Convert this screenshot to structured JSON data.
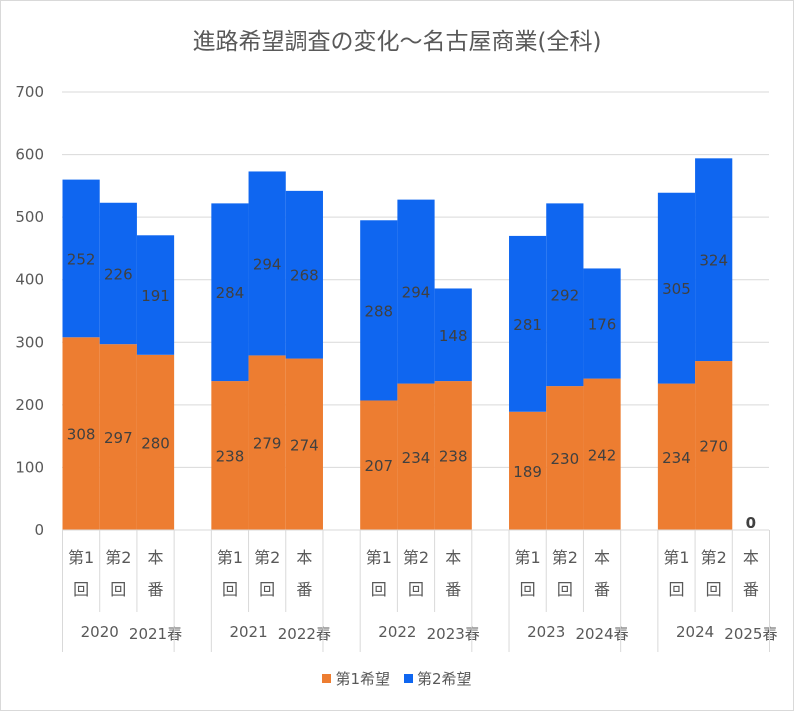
{
  "chart_data": {
    "type": "bar",
    "stacked": true,
    "title": "進路希望調査の変化～名古屋商業(全科)",
    "ylim": [
      0,
      700
    ],
    "yticks": [
      0,
      100,
      200,
      300,
      400,
      500,
      600,
      700
    ],
    "grid": true,
    "legend_position": "bottom",
    "groups": [
      {
        "year": "2020",
        "exam": "2021春",
        "bars": [
          {
            "label": [
              "第1",
              "回"
            ],
            "first": 308,
            "second": 252
          },
          {
            "label": [
              "第2",
              "回"
            ],
            "first": 297,
            "second": 226
          },
          {
            "label": [
              "本",
              "番"
            ],
            "first": 280,
            "second": 191
          }
        ]
      },
      {
        "year": "2021",
        "exam": "2022春",
        "bars": [
          {
            "label": [
              "第1",
              "回"
            ],
            "first": 238,
            "second": 284
          },
          {
            "label": [
              "第2",
              "回"
            ],
            "first": 279,
            "second": 294
          },
          {
            "label": [
              "本",
              "番"
            ],
            "first": 274,
            "second": 268
          }
        ]
      },
      {
        "year": "2022",
        "exam": "2023春",
        "bars": [
          {
            "label": [
              "第1",
              "回"
            ],
            "first": 207,
            "second": 288
          },
          {
            "label": [
              "第2",
              "回"
            ],
            "first": 234,
            "second": 294
          },
          {
            "label": [
              "本",
              "番"
            ],
            "first": 238,
            "second": 148
          }
        ]
      },
      {
        "year": "2023",
        "exam": "2024春",
        "bars": [
          {
            "label": [
              "第1",
              "回"
            ],
            "first": 189,
            "second": 281
          },
          {
            "label": [
              "第2",
              "回"
            ],
            "first": 230,
            "second": 292
          },
          {
            "label": [
              "本",
              "番"
            ],
            "first": 242,
            "second": 176
          }
        ]
      },
      {
        "year": "2024",
        "exam": "2025春",
        "bars": [
          {
            "label": [
              "第1",
              "回"
            ],
            "first": 234,
            "second": 305
          },
          {
            "label": [
              "第2",
              "回"
            ],
            "first": 270,
            "second": 324
          },
          {
            "label": [
              "本",
              "番"
            ],
            "first": 0,
            "second": 0,
            "show_zero_label": true
          }
        ]
      }
    ],
    "series": [
      {
        "name": "第1希望",
        "key": "first",
        "color": "#ED7D31"
      },
      {
        "name": "第2希望",
        "key": "second",
        "color": "#0F66F0"
      }
    ]
  }
}
